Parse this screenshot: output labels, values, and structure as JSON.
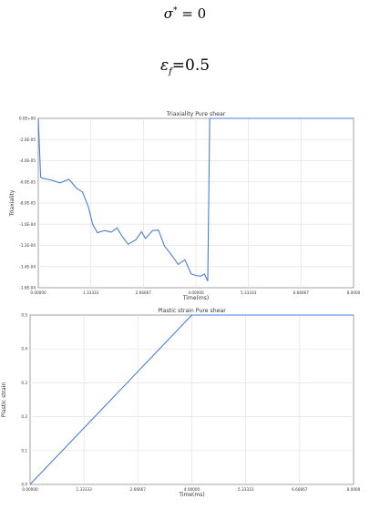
{
  "equations": {
    "sigma_symbol": "σ",
    "sigma_sup": "*",
    "sigma_rhs": " = 0",
    "eps_symbol": "ε",
    "eps_sub": "f",
    "eps_rhs": "=0.5"
  },
  "chart_data": [
    {
      "type": "line",
      "title": "Triaxiality Pure shear",
      "xlabel": "Time(ms)",
      "ylabel": "Triaxiality",
      "xlim": [
        0,
        8
      ],
      "ylim": [
        -0.00016,
        0
      ],
      "xtick_labels": [
        "0.00000",
        "1.33333",
        "2.66667",
        "4.00000",
        "5.33333",
        "6.66667",
        "8.0000"
      ],
      "ytick_labels": [
        "0.0E+00",
        "-2.0E-05",
        "-4.0E-05",
        "-6.0E-05",
        "-8.0E-05",
        "-1.0E-04",
        "-1.2E-04",
        "-1.4E-04",
        "-1.6E-04"
      ],
      "grid": true,
      "series": [
        {
          "color": "#4a7fd4",
          "x": [
            0,
            0.06,
            0.1,
            0.35,
            0.55,
            0.78,
            0.97,
            1.12,
            1.27,
            1.38,
            1.5,
            1.68,
            1.85,
            2.0,
            2.12,
            2.28,
            2.48,
            2.62,
            2.72,
            2.9,
            3.05,
            3.2,
            3.35,
            3.55,
            3.72,
            3.88,
            4.0,
            4.12,
            4.22,
            4.28,
            4.3,
            4.35,
            8.0
          ],
          "y": [
            0,
            -5.55e-05,
            -5.65e-05,
            -5.85e-05,
            -6.1e-05,
            -5.75e-05,
            -6.6e-05,
            -6.95e-05,
            -8.35e-05,
            -0.0001,
            -0.000108,
            -0.000106,
            -0.0001075,
            -0.0001035,
            -0.000111,
            -0.000119,
            -0.0001145,
            -0.000107,
            -0.0001135,
            -0.000106,
            -0.0001055,
            -0.0001205,
            -0.0001275,
            -0.000138,
            -0.0001335,
            -0.000147,
            -0.0001485,
            -0.000149,
            -0.000147,
            -0.0001525,
            -0.0001535,
            0,
            0
          ]
        }
      ]
    },
    {
      "type": "line",
      "title": "Plastic strain Pure shear",
      "xlabel": "Time(ms)",
      "ylabel": "Plastic strain",
      "xlim": [
        0,
        8
      ],
      "ylim": [
        0,
        0.5
      ],
      "xtick_labels": [
        "0.00000",
        "1.33333",
        "2.66667",
        "4.00000",
        "5.33333",
        "6.66667",
        "8.0000"
      ],
      "ytick_labels": [
        "0.5",
        "0.4",
        "0.3",
        "0.2",
        "0.1",
        "0.0"
      ],
      "grid": true,
      "series": [
        {
          "color": "#4a7fd4",
          "x": [
            0,
            4.0,
            8.0
          ],
          "y": [
            0,
            0.5,
            0.5
          ]
        }
      ]
    }
  ]
}
